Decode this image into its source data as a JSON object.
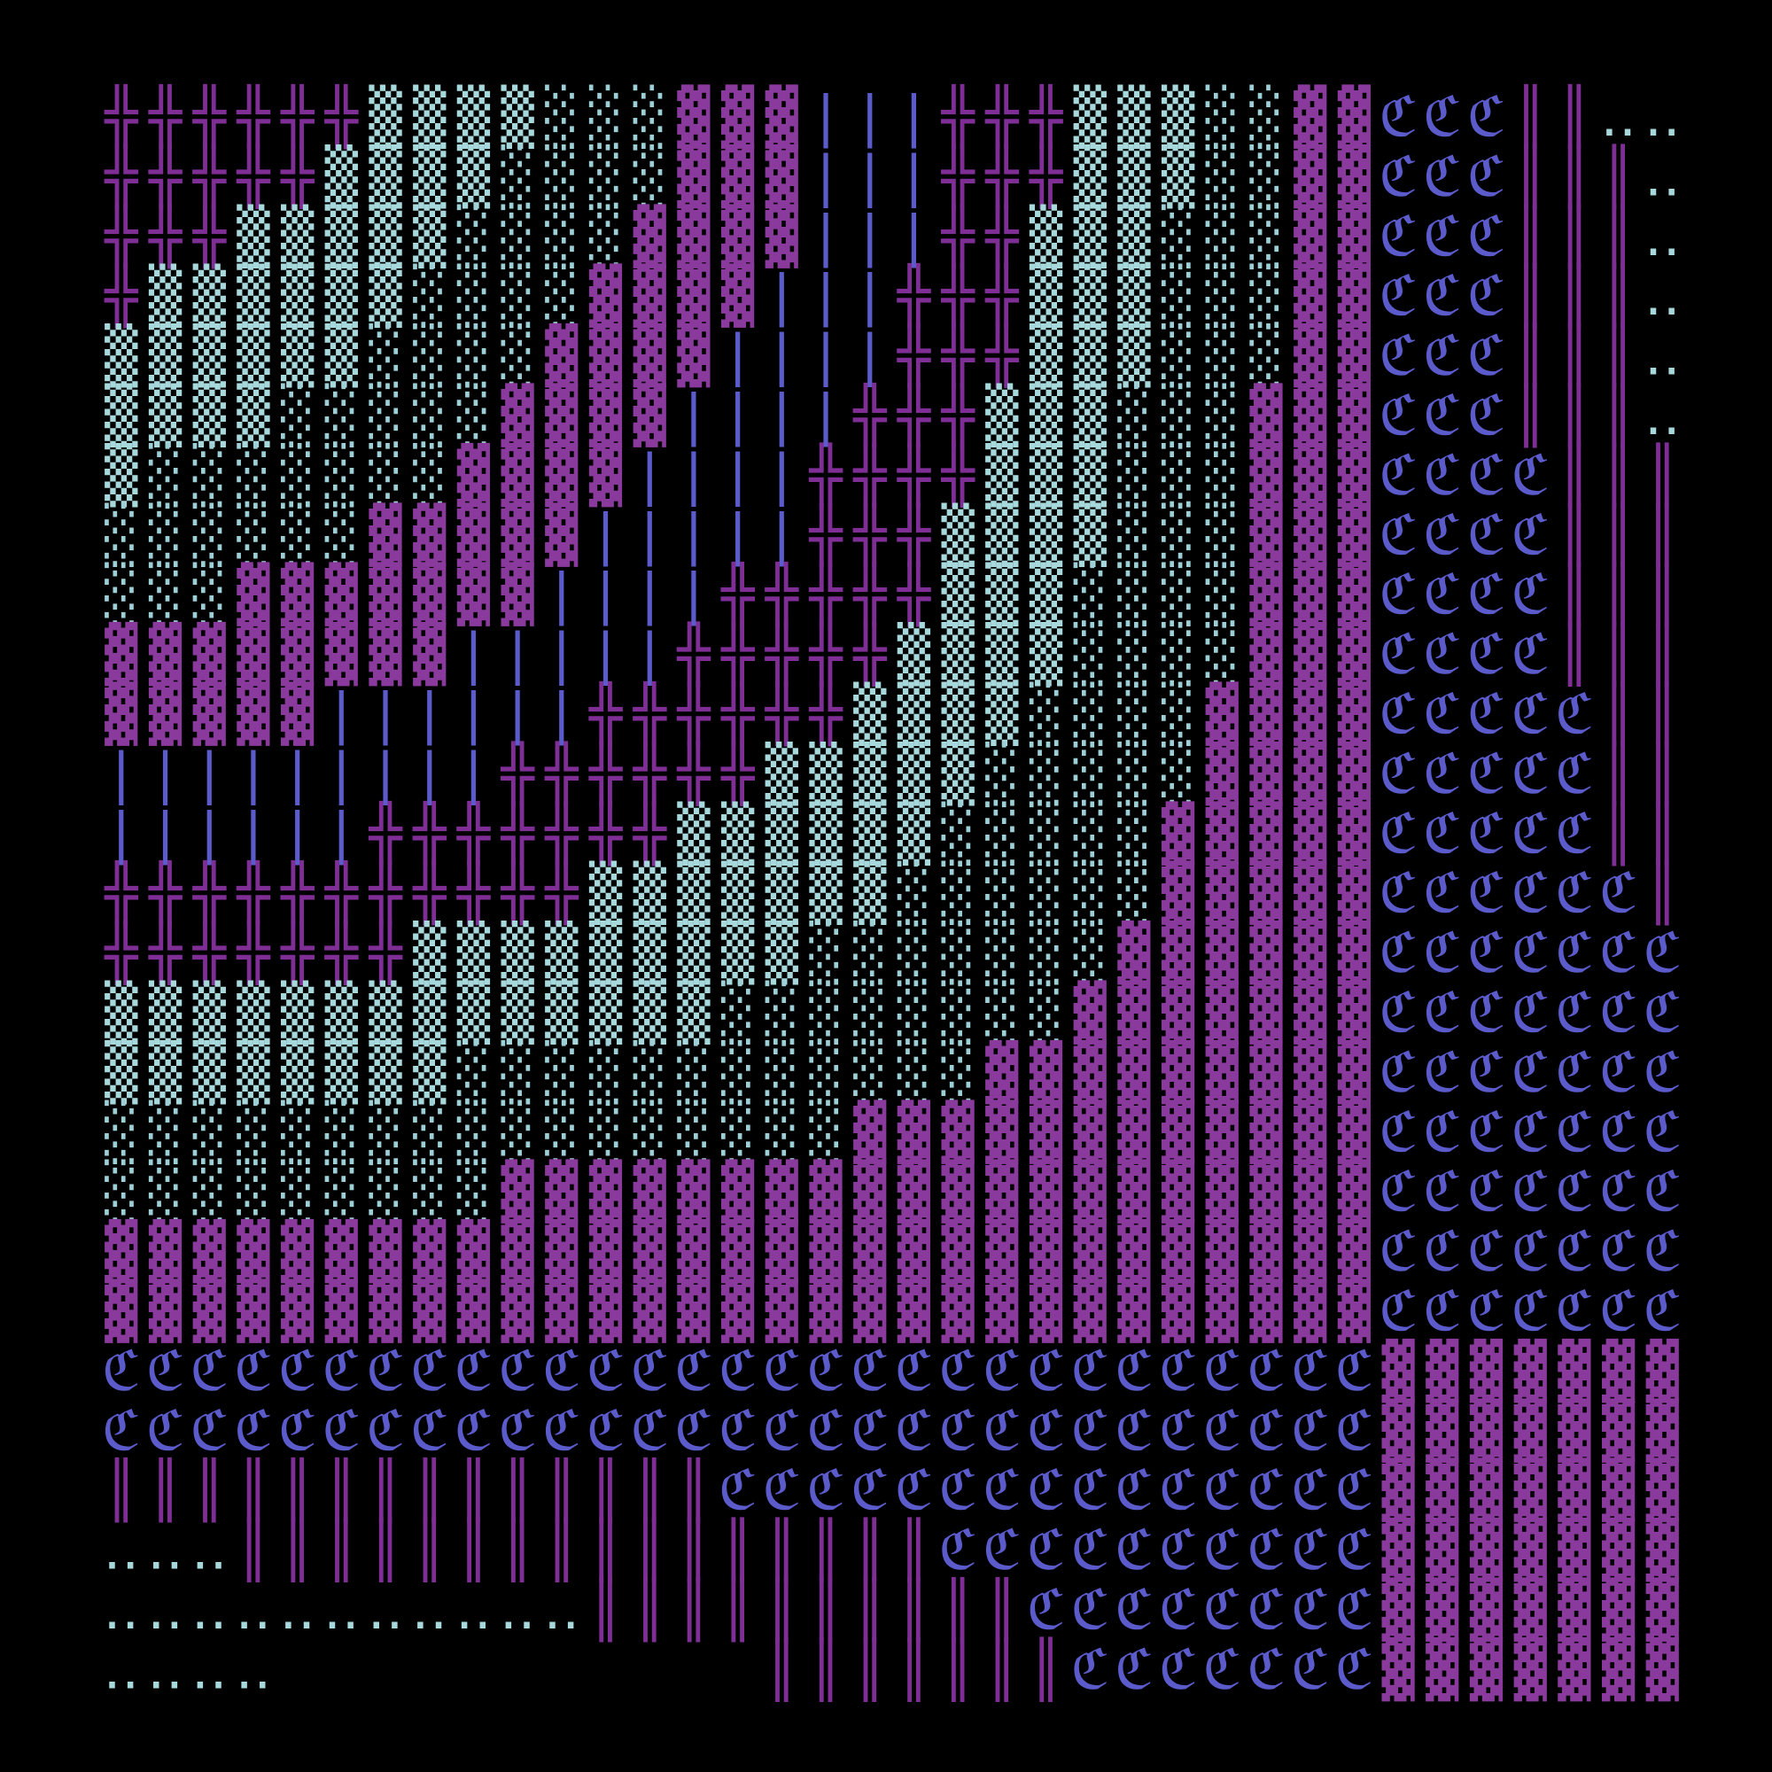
{
  "rows": [
    "╬╬╬╬╬╬▒▒▒▒░░░▓▓▓|||╬╬╬▒▒▒░░▓▓ℭℭℭ║║‥‥",
    "╬╬╬╬╬▒▒▒▒░░░░▓▓▓|||╬╬╬▒▒▒░░▓▓ℭℭℭ║║║‥",
    "╬╬╬▒▒▒▒▒░░░░▓▓▓▓|||╬╬▒▒▒░░░▓▓ℭℭℭ║║║‥",
    "╬▒▒▒▒▒▒░░░░▓▓▓▓|||╬╬╬▒▒▒░░░▓▓ℭℭℭ║║║‥",
    "▒▒▒▒▒▒░░░░▓▓▓▓||||╬╬╬▒▒▒░░░▓▓ℭℭℭ║║║‥",
    "▒▒▒▒░░░░░▓▓▓▓||||╬╬╬▒▒▒░░░▓▓▓ℭℭℭ║║║‥",
    "▒░░░░░░░▓▓▓▓||||╬╬╬╬▒▒▒░░░▓▓▓ℭℭℭℭ║║║",
    "░░░░░░▓▓▓▓▓|||||╬╬╬▒▒▒▒░░░▓▓▓ℭℭℭℭ║║║",
    "░░░▓▓▓▓▓▓▓||||╬╬╬╬╬▒▒▒░░░░▓▓▓ℭℭℭℭ║║║",
    "▓▓▓▓▓▓▓▓|||||╬╬╬╬╬▒▒▒▒░░░░▓▓▓ℭℭℭℭ║║║",
    "▓▓▓▓▓||||||╬╬╬╬╬╬▒▒▒▒░░░░▓▓▓▓ℭℭℭℭℭ║║",
    "|||||||||╬╬╬╬╬╬▒▒▒▒▒░░░░░▓▓▓▓ℭℭℭℭℭ║║",
    "||||||╬╬╬╬╬╬╬▒▒▒▒▒▒░░░░░▓▓▓▓▓ℭℭℭℭℭ║║",
    "╬╬╬╬╬╬╬╬╬╬╬▒▒▒▒▒▒▒░░░░░░▓▓▓▓▓ℭℭℭℭℭℭ║",
    "╬╬╬╬╬╬╬▒▒▒▒▒▒▒▒▒░░░░░░░▓▓▓▓▓▓ℭℭℭℭℭℭℭ",
    "▒▒▒▒▒▒▒▒▒▒▒▒▒▒░░░░░░░░▓▓▓▓▓▓▓ℭℭℭℭℭℭℭ",
    "▒▒▒▒▒▒▒▒░░░░░░░░░░░░▓▓▓▓▓▓▓▓▓ℭℭℭℭℭℭℭ",
    "░░░░░░░░░░░░░░░░░▓▓▓▓▓▓▓▓▓▓▓▓ℭℭℭℭℭℭℭ",
    "░░░░░░░░░▓▓▓▓▓▓▓▓▓▓▓▓▓▓▓▓▓▓▓▓ℭℭℭℭℭℭℭ",
    "▓▓▓▓▓▓▓▓▓▓▓▓▓▓▓▓▓▓▓▓▓▓▓▓▓▓▓▓▓ℭℭℭℭℭℭℭ",
    "▓▓▓▓▓▓▓▓▓▓▓▓▓▓▓▓▓▓▓▓▓▓▓▓▓▓▓▓▓ℭℭℭℭℭℭℭ",
    "ℭℭℭℭℭℭℭℭℭℭℭℭℭℭℭℭℭℭℭℭℭℭℭℭℭℭℭℭℭ▓▓▓▓▓▓▓",
    "ℭℭℭℭℭℭℭℭℭℭℭℭℭℭℭℭℭℭℭℭℭℭℭℭℭℭℭℭℭ▓▓▓▓▓▓▓",
    "║║║║║║║║║║║║║║ℭℭℭℭℭℭℭℭℭℭℭℭℭℭℭ▓▓▓▓▓▓▓",
    "‥‥‥║║║║║║║║║║║║║║║║ℭℭℭℭℭℭℭℭℭℭ▓▓▓▓▓▓▓",
    "‥‥‥‥‥‥‥‥‥‥‥║║║║║║║║║║ℭℭℭℭℭℭℭℭ▓▓▓▓▓▓▓",
    "‥‥‥‥           ║║║║║║║ℭℭℭℭℭℭℭ▓▓▓▓▓▓▓"
  ],
  "colors": {
    "╬": "#7e2e95",
    "▓": "#8a3a9c",
    "║": "#7e2e95",
    "▒": "#a6d8dc",
    "░": "#9ccfd6",
    "‥": "#a6d8dc",
    "|": "#5b5bcc",
    "ℭ": "#5b5bcc"
  }
}
